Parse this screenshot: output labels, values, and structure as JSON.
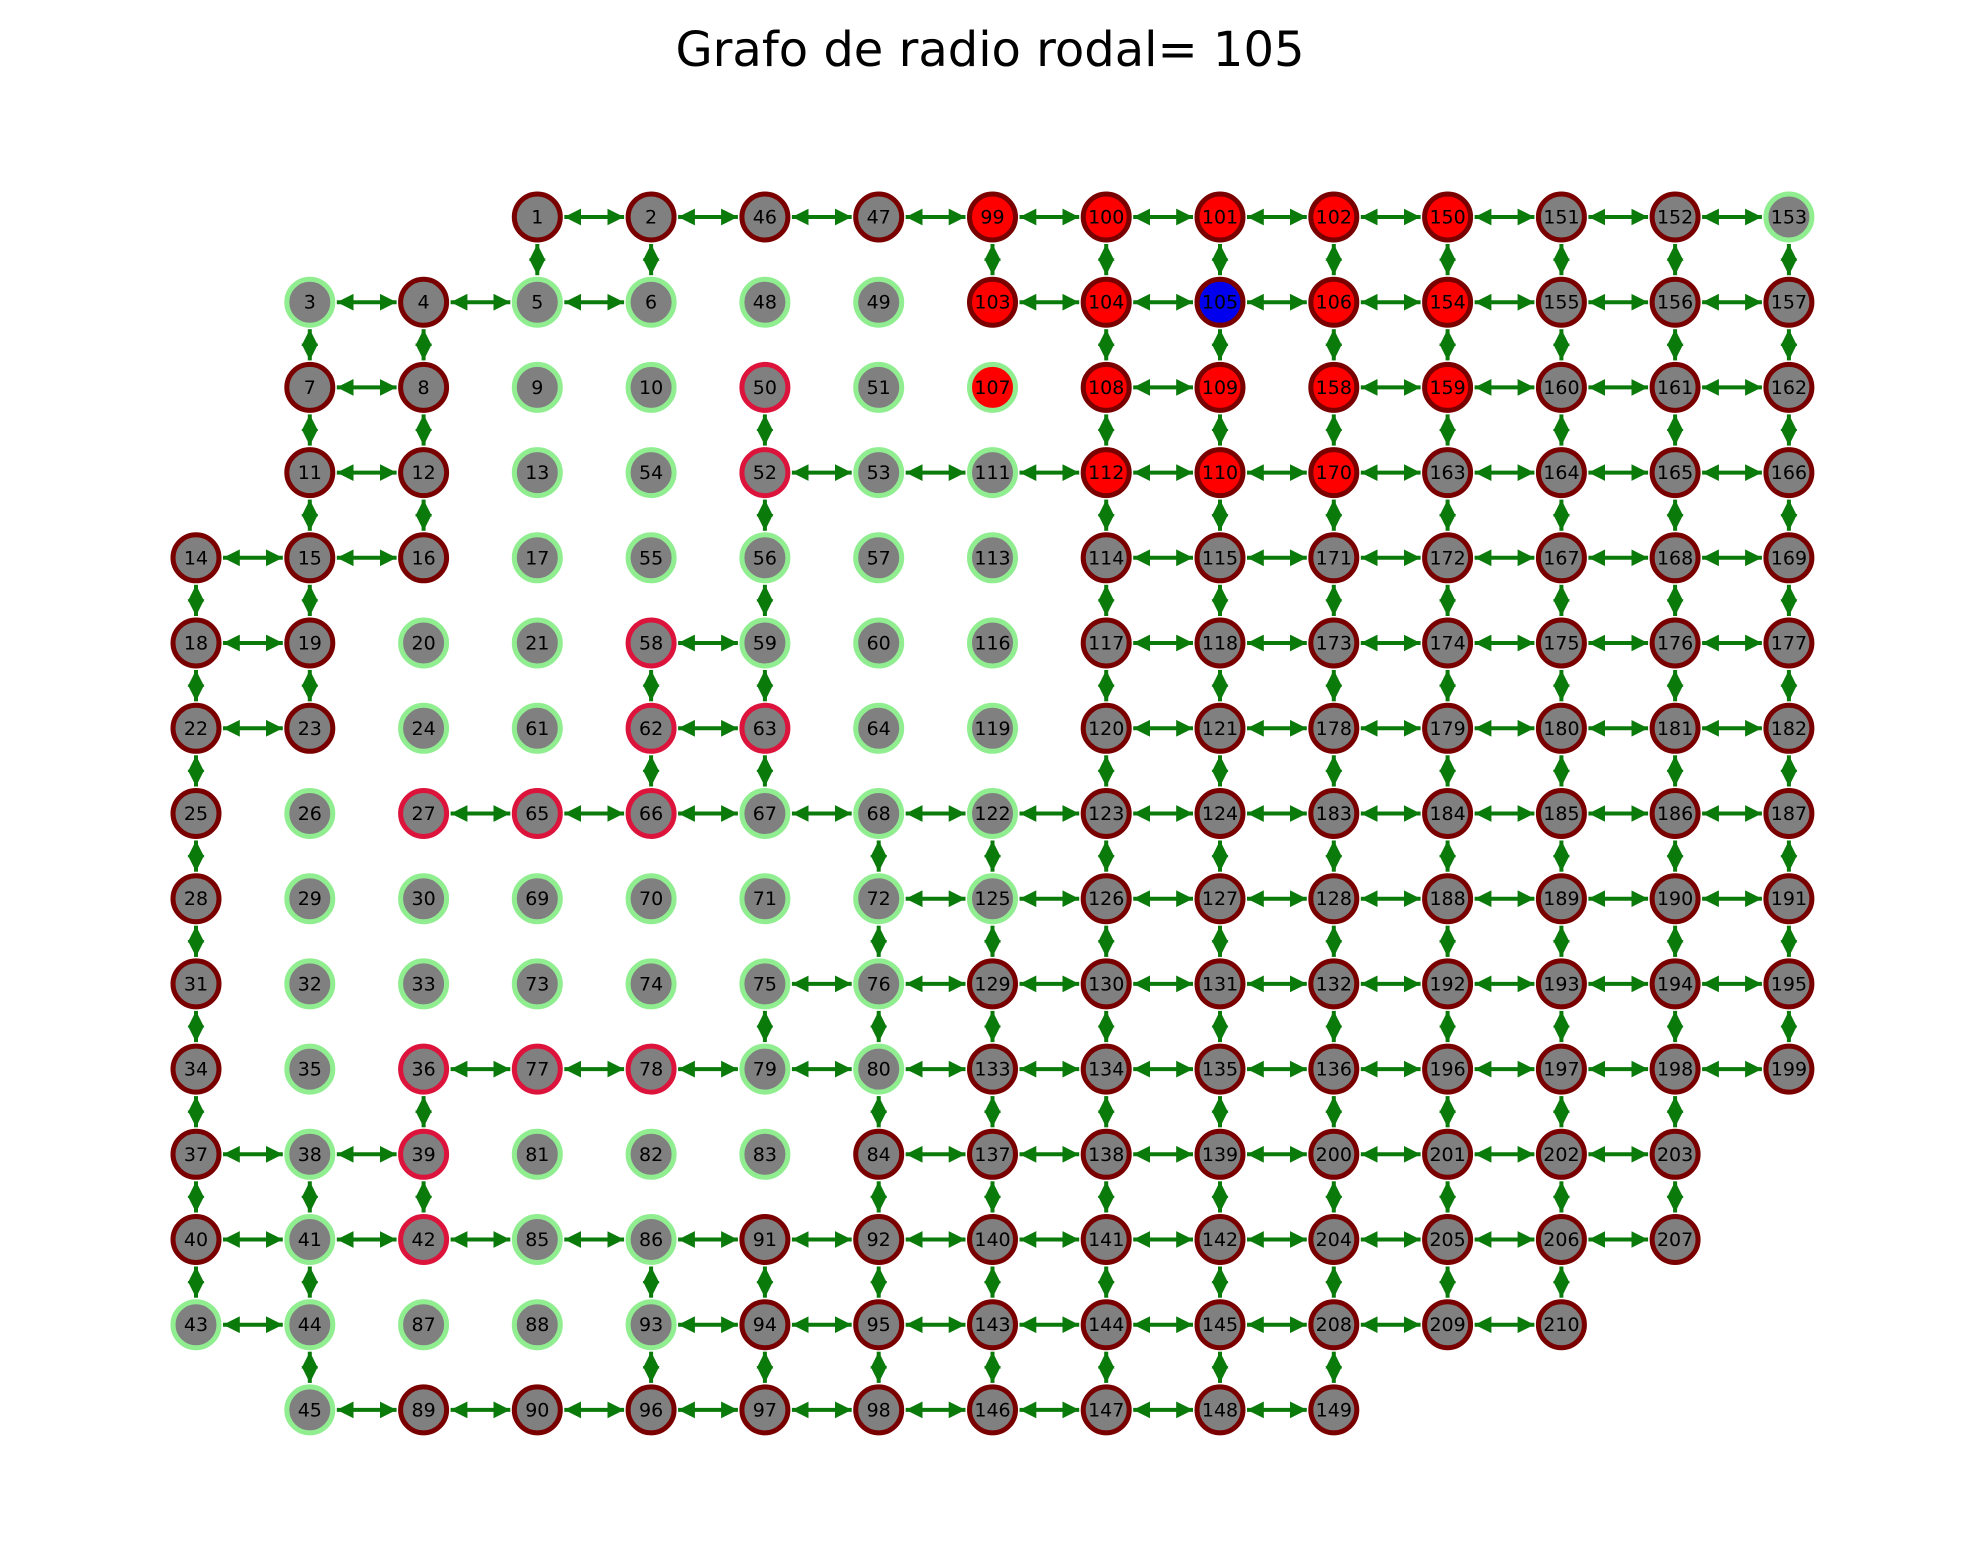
{
  "title": "Grafo de radio rodal= 105",
  "colors": {
    "edge": "#0a7a0a",
    "fill_default": "#808080",
    "fill_in_radius": "#ff0000",
    "fill_center": "#0000ee",
    "stroke_dark": "#7a0000",
    "stroke_green": "#90ee90",
    "stroke_crimson": "#dc143c"
  },
  "graph": {
    "rows": [
      {
        "start_col": 3,
        "nodes": [
          1,
          2,
          46,
          47,
          99,
          100,
          101,
          102,
          150,
          151,
          152,
          153
        ]
      },
      {
        "start_col": 1,
        "nodes": [
          3,
          4,
          5,
          6,
          48,
          49,
          103,
          104,
          105,
          106,
          154,
          155,
          156,
          157
        ]
      },
      {
        "start_col": 1,
        "nodes": [
          7,
          8,
          9,
          10,
          50,
          51,
          107,
          108,
          109,
          158,
          159,
          160,
          161,
          162
        ]
      },
      {
        "start_col": 1,
        "nodes": [
          11,
          12,
          13,
          54,
          52,
          53,
          111,
          112,
          110,
          170,
          163,
          164,
          165,
          166
        ]
      },
      {
        "start_col": 0,
        "nodes": [
          14,
          15,
          16,
          17,
          55,
          56,
          57,
          113,
          114,
          115,
          171,
          172,
          167,
          168,
          169
        ]
      },
      {
        "start_col": 0,
        "nodes": [
          18,
          19,
          20,
          21,
          58,
          59,
          60,
          116,
          117,
          118,
          173,
          174,
          175,
          176,
          177
        ]
      },
      {
        "start_col": 0,
        "nodes": [
          22,
          23,
          24,
          61,
          62,
          63,
          64,
          119,
          120,
          121,
          178,
          179,
          180,
          181,
          182
        ]
      },
      {
        "start_col": 0,
        "nodes": [
          25,
          26,
          27,
          65,
          66,
          67,
          68,
          122,
          123,
          124,
          183,
          184,
          185,
          186,
          187
        ]
      },
      {
        "start_col": 0,
        "nodes": [
          28,
          29,
          30,
          69,
          70,
          71,
          72,
          125,
          126,
          127,
          128,
          188,
          189,
          190,
          191
        ]
      },
      {
        "start_col": 0,
        "nodes": [
          31,
          32,
          33,
          73,
          74,
          75,
          76,
          129,
          130,
          131,
          132,
          192,
          193,
          194,
          195
        ]
      },
      {
        "start_col": 0,
        "nodes": [
          34,
          35,
          36,
          77,
          78,
          79,
          80,
          133,
          134,
          135,
          136,
          196,
          197,
          198,
          199
        ]
      },
      {
        "start_col": 0,
        "nodes": [
          37,
          38,
          39,
          81,
          82,
          83,
          84,
          137,
          138,
          139,
          200,
          201,
          202,
          203
        ]
      },
      {
        "start_col": 0,
        "nodes": [
          40,
          41,
          42,
          85,
          86,
          91,
          92,
          140,
          141,
          142,
          204,
          205,
          206,
          207
        ]
      },
      {
        "start_col": 0,
        "nodes": [
          43,
          44,
          87,
          88,
          93,
          94,
          95,
          143,
          144,
          145,
          208,
          209,
          210
        ]
      },
      {
        "start_col": 1,
        "nodes": [
          45,
          89,
          90,
          96,
          97,
          98,
          146,
          147,
          148,
          149
        ]
      }
    ],
    "center_node": 105,
    "red_fill_nodes": [
      99,
      100,
      101,
      102,
      150,
      103,
      104,
      106,
      154,
      107,
      108,
      109,
      158,
      159,
      112,
      110,
      170
    ],
    "green_ring_nodes": [
      153,
      3,
      5,
      6,
      48,
      49,
      9,
      10,
      51,
      107,
      13,
      54,
      53,
      111,
      17,
      55,
      56,
      57,
      113,
      20,
      21,
      59,
      60,
      116,
      24,
      61,
      64,
      119,
      26,
      67,
      68,
      122,
      29,
      30,
      69,
      70,
      71,
      72,
      125,
      32,
      33,
      73,
      74,
      75,
      76,
      35,
      79,
      80,
      38,
      81,
      82,
      83,
      41,
      85,
      86,
      43,
      44,
      87,
      88,
      93,
      45
    ],
    "crimson_ring_nodes": [
      50,
      52,
      58,
      62,
      63,
      27,
      65,
      66,
      36,
      77,
      78,
      39,
      42
    ],
    "edges": [
      [
        1,
        2
      ],
      [
        2,
        46
      ],
      [
        46,
        47
      ],
      [
        47,
        99
      ],
      [
        99,
        100
      ],
      [
        100,
        101
      ],
      [
        101,
        102
      ],
      [
        102,
        150
      ],
      [
        150,
        151
      ],
      [
        151,
        152
      ],
      [
        152,
        153
      ],
      [
        1,
        5
      ],
      [
        2,
        6
      ],
      [
        99,
        103
      ],
      [
        100,
        104
      ],
      [
        101,
        105
      ],
      [
        102,
        106
      ],
      [
        150,
        154
      ],
      [
        151,
        155
      ],
      [
        152,
        156
      ],
      [
        153,
        157
      ],
      [
        3,
        4
      ],
      [
        4,
        5
      ],
      [
        5,
        6
      ],
      [
        103,
        104
      ],
      [
        104,
        105
      ],
      [
        105,
        106
      ],
      [
        106,
        154
      ],
      [
        154,
        155
      ],
      [
        155,
        156
      ],
      [
        156,
        157
      ],
      [
        3,
        7
      ],
      [
        4,
        8
      ],
      [
        104,
        108
      ],
      [
        105,
        109
      ],
      [
        106,
        158
      ],
      [
        154,
        159
      ],
      [
        155,
        160
      ],
      [
        156,
        161
      ],
      [
        157,
        162
      ],
      [
        7,
        8
      ],
      [
        108,
        109
      ],
      [
        158,
        159
      ],
      [
        159,
        160
      ],
      [
        160,
        161
      ],
      [
        161,
        162
      ],
      [
        7,
        11
      ],
      [
        8,
        12
      ],
      [
        50,
        52
      ],
      [
        108,
        112
      ],
      [
        109,
        110
      ],
      [
        158,
        170
      ],
      [
        159,
        163
      ],
      [
        160,
        164
      ],
      [
        161,
        165
      ],
      [
        162,
        166
      ],
      [
        11,
        12
      ],
      [
        52,
        53
      ],
      [
        53,
        111
      ],
      [
        111,
        112
      ],
      [
        112,
        110
      ],
      [
        110,
        170
      ],
      [
        170,
        163
      ],
      [
        163,
        164
      ],
      [
        164,
        165
      ],
      [
        165,
        166
      ],
      [
        11,
        15
      ],
      [
        12,
        16
      ],
      [
        52,
        56
      ],
      [
        112,
        114
      ],
      [
        110,
        115
      ],
      [
        170,
        171
      ],
      [
        163,
        172
      ],
      [
        164,
        167
      ],
      [
        165,
        168
      ],
      [
        166,
        169
      ],
      [
        14,
        15
      ],
      [
        15,
        16
      ],
      [
        114,
        115
      ],
      [
        115,
        171
      ],
      [
        171,
        172
      ],
      [
        172,
        167
      ],
      [
        167,
        168
      ],
      [
        168,
        169
      ],
      [
        14,
        18
      ],
      [
        15,
        19
      ],
      [
        56,
        59
      ],
      [
        114,
        117
      ],
      [
        115,
        118
      ],
      [
        171,
        173
      ],
      [
        172,
        174
      ],
      [
        167,
        175
      ],
      [
        168,
        176
      ],
      [
        169,
        177
      ],
      [
        18,
        19
      ],
      [
        58,
        59
      ],
      [
        117,
        118
      ],
      [
        118,
        173
      ],
      [
        173,
        174
      ],
      [
        174,
        175
      ],
      [
        175,
        176
      ],
      [
        176,
        177
      ],
      [
        18,
        22
      ],
      [
        19,
        23
      ],
      [
        58,
        62
      ],
      [
        59,
        63
      ],
      [
        117,
        120
      ],
      [
        118,
        121
      ],
      [
        173,
        178
      ],
      [
        174,
        179
      ],
      [
        175,
        180
      ],
      [
        176,
        181
      ],
      [
        177,
        182
      ],
      [
        22,
        23
      ],
      [
        62,
        63
      ],
      [
        120,
        121
      ],
      [
        121,
        178
      ],
      [
        178,
        179
      ],
      [
        179,
        180
      ],
      [
        180,
        181
      ],
      [
        181,
        182
      ],
      [
        22,
        25
      ],
      [
        62,
        66
      ],
      [
        63,
        67
      ],
      [
        120,
        123
      ],
      [
        121,
        124
      ],
      [
        178,
        183
      ],
      [
        179,
        184
      ],
      [
        180,
        185
      ],
      [
        181,
        186
      ],
      [
        182,
        187
      ],
      [
        27,
        65
      ],
      [
        65,
        66
      ],
      [
        66,
        67
      ],
      [
        67,
        68
      ],
      [
        68,
        122
      ],
      [
        122,
        123
      ],
      [
        123,
        124
      ],
      [
        124,
        183
      ],
      [
        183,
        184
      ],
      [
        184,
        185
      ],
      [
        185,
        186
      ],
      [
        186,
        187
      ],
      [
        25,
        28
      ],
      [
        68,
        72
      ],
      [
        122,
        125
      ],
      [
        123,
        126
      ],
      [
        124,
        127
      ],
      [
        183,
        128
      ],
      [
        184,
        188
      ],
      [
        185,
        189
      ],
      [
        186,
        190
      ],
      [
        187,
        191
      ],
      [
        72,
        125
      ],
      [
        125,
        126
      ],
      [
        126,
        127
      ],
      [
        127,
        128
      ],
      [
        128,
        188
      ],
      [
        188,
        189
      ],
      [
        189,
        190
      ],
      [
        190,
        191
      ],
      [
        28,
        31
      ],
      [
        72,
        76
      ],
      [
        125,
        129
      ],
      [
        126,
        130
      ],
      [
        127,
        131
      ],
      [
        128,
        132
      ],
      [
        188,
        192
      ],
      [
        189,
        193
      ],
      [
        190,
        194
      ],
      [
        191,
        195
      ],
      [
        75,
        76
      ],
      [
        76,
        129
      ],
      [
        129,
        130
      ],
      [
        130,
        131
      ],
      [
        131,
        132
      ],
      [
        132,
        192
      ],
      [
        192,
        193
      ],
      [
        193,
        194
      ],
      [
        194,
        195
      ],
      [
        31,
        34
      ],
      [
        75,
        79
      ],
      [
        76,
        80
      ],
      [
        129,
        133
      ],
      [
        130,
        134
      ],
      [
        131,
        135
      ],
      [
        132,
        136
      ],
      [
        192,
        196
      ],
      [
        193,
        197
      ],
      [
        194,
        198
      ],
      [
        195,
        199
      ],
      [
        36,
        77
      ],
      [
        77,
        78
      ],
      [
        78,
        79
      ],
      [
        79,
        80
      ],
      [
        80,
        133
      ],
      [
        133,
        134
      ],
      [
        134,
        135
      ],
      [
        135,
        136
      ],
      [
        136,
        196
      ],
      [
        196,
        197
      ],
      [
        197,
        198
      ],
      [
        198,
        199
      ],
      [
        34,
        37
      ],
      [
        36,
        39
      ],
      [
        80,
        84
      ],
      [
        133,
        137
      ],
      [
        134,
        138
      ],
      [
        135,
        139
      ],
      [
        136,
        200
      ],
      [
        196,
        201
      ],
      [
        197,
        202
      ],
      [
        198,
        203
      ],
      [
        37,
        38
      ],
      [
        38,
        39
      ],
      [
        84,
        137
      ],
      [
        137,
        138
      ],
      [
        138,
        139
      ],
      [
        139,
        200
      ],
      [
        200,
        201
      ],
      [
        201,
        202
      ],
      [
        202,
        203
      ],
      [
        37,
        40
      ],
      [
        38,
        41
      ],
      [
        39,
        42
      ],
      [
        84,
        92
      ],
      [
        137,
        140
      ],
      [
        138,
        141
      ],
      [
        139,
        142
      ],
      [
        200,
        204
      ],
      [
        201,
        205
      ],
      [
        202,
        206
      ],
      [
        203,
        207
      ],
      [
        40,
        41
      ],
      [
        41,
        42
      ],
      [
        42,
        85
      ],
      [
        85,
        86
      ],
      [
        86,
        91
      ],
      [
        91,
        92
      ],
      [
        92,
        140
      ],
      [
        140,
        141
      ],
      [
        141,
        142
      ],
      [
        142,
        204
      ],
      [
        204,
        205
      ],
      [
        205,
        206
      ],
      [
        206,
        207
      ],
      [
        40,
        43
      ],
      [
        41,
        44
      ],
      [
        86,
        93
      ],
      [
        91,
        94
      ],
      [
        92,
        95
      ],
      [
        140,
        143
      ],
      [
        141,
        144
      ],
      [
        142,
        145
      ],
      [
        204,
        208
      ],
      [
        205,
        209
      ],
      [
        206,
        210
      ],
      [
        43,
        44
      ],
      [
        93,
        94
      ],
      [
        94,
        95
      ],
      [
        95,
        143
      ],
      [
        143,
        144
      ],
      [
        144,
        145
      ],
      [
        145,
        208
      ],
      [
        208,
        209
      ],
      [
        209,
        210
      ],
      [
        44,
        45
      ],
      [
        93,
        96
      ],
      [
        94,
        97
      ],
      [
        95,
        98
      ],
      [
        143,
        146
      ],
      [
        144,
        147
      ],
      [
        145,
        148
      ],
      [
        208,
        149
      ],
      [
        45,
        89
      ],
      [
        89,
        90
      ],
      [
        90,
        96
      ],
      [
        96,
        97
      ],
      [
        97,
        98
      ],
      [
        98,
        146
      ],
      [
        146,
        147
      ],
      [
        147,
        148
      ],
      [
        148,
        149
      ]
    ]
  }
}
